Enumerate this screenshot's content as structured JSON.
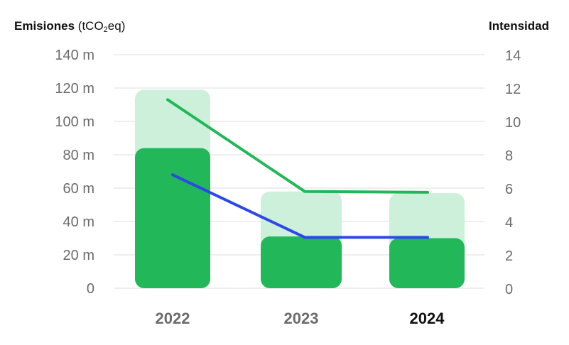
{
  "chart_data": {
    "type": "bar",
    "left_axis": {
      "title_main": "Emisiones",
      "title_unit_prefix": "(tCO",
      "title_unit_sub": "2",
      "title_unit_suffix": "eq)",
      "ticks": [
        "0",
        "20 m",
        "40 m",
        "60 m",
        "80 m",
        "100 m",
        "120 m",
        "140 m"
      ],
      "ylim": [
        0,
        140
      ]
    },
    "right_axis": {
      "title": "Intensidad",
      "ticks": [
        "0",
        "2",
        "4",
        "6",
        "8",
        "10",
        "12",
        "14"
      ],
      "ylim": [
        0,
        14
      ]
    },
    "categories": [
      "2022",
      "2023",
      "2024"
    ],
    "active_category": "2024",
    "series": [
      {
        "kind": "bar",
        "axis": "left",
        "color": "#cdf0db",
        "values": [
          119,
          58,
          57
        ]
      },
      {
        "kind": "bar",
        "axis": "left",
        "color": "#22b758",
        "values": [
          84,
          31,
          30
        ]
      },
      {
        "kind": "line",
        "axis": "right",
        "color": "#22b758",
        "values": [
          11.3,
          5.8,
          5.75
        ]
      },
      {
        "kind": "line",
        "axis": "right",
        "color": "#2c48e8",
        "values": [
          6.8,
          3.05,
          3.05
        ]
      }
    ],
    "grid": true,
    "legend": "none"
  }
}
